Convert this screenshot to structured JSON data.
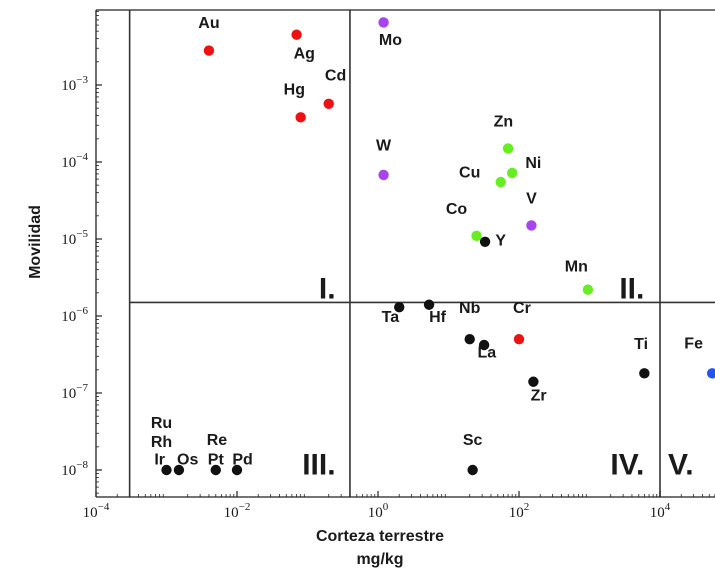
{
  "chart_data": {
    "type": "scatter",
    "xlabel_line1": "Corteza terrestre",
    "xlabel_line2": "mg/kg",
    "ylabel": "Movilidad",
    "x_scale": "log",
    "y_scale": "log",
    "xlim": [
      0.0001,
      100000
    ],
    "ylim": [
      5e-09,
      0.01
    ],
    "grid": false,
    "colors": {
      "red": "#ee1111",
      "violet": "#a844ee",
      "green": "#66ee22",
      "black": "#111111",
      "blue": "#2255ee"
    },
    "x_ticks": [
      {
        "value": 0.0001,
        "mantissa": "10",
        "exp": "−4"
      },
      {
        "value": 0.01,
        "mantissa": "10",
        "exp": "−2"
      },
      {
        "value": 1,
        "mantissa": "10",
        "exp": "0"
      },
      {
        "value": 100,
        "mantissa": "10",
        "exp": "2"
      },
      {
        "value": 10000,
        "mantissa": "10",
        "exp": "4"
      }
    ],
    "y_ticks": [
      {
        "value": 1e-08,
        "mantissa": "10",
        "exp": "−8"
      },
      {
        "value": 1e-07,
        "mantissa": "10",
        "exp": "−7"
      },
      {
        "value": 1e-06,
        "mantissa": "10",
        "exp": "−6"
      },
      {
        "value": 1e-05,
        "mantissa": "10",
        "exp": "−5"
      },
      {
        "value": 0.0001,
        "mantissa": "10",
        "exp": "−4"
      },
      {
        "value": 0.001,
        "mantissa": "10",
        "exp": "−3"
      }
    ],
    "dividers": {
      "vertical_x": [
        0.0003,
        0.4,
        10000
      ],
      "horizontal_y": 1.5e-06
    },
    "regions": [
      {
        "label": "I.",
        "x": 0.25,
        "y": 1.7e-06
      },
      {
        "label": "II.",
        "x": 6000,
        "y": 1.7e-06
      },
      {
        "label": "III.",
        "x": 0.25,
        "y": 8.8e-09
      },
      {
        "label": "IV.",
        "x": 6000,
        "y": 8.8e-09
      },
      {
        "label": "V.",
        "x": 30000,
        "y": 8.8e-09
      }
    ],
    "points": [
      {
        "label": "Au",
        "x": 0.004,
        "y": 0.0028,
        "color": "red",
        "lx": 0.004,
        "ly": 0.0055
      },
      {
        "label": "Ag",
        "x": 0.07,
        "y": 0.0045,
        "color": "red",
        "lx": 0.09,
        "ly": 0.0022
      },
      {
        "label": "Hg",
        "x": 0.08,
        "y": 0.00038,
        "color": "red",
        "lx": 0.065,
        "ly": 0.00075
      },
      {
        "label": "Cd",
        "x": 0.2,
        "y": 0.00057,
        "color": "red",
        "lx": 0.25,
        "ly": 0.00115
      },
      {
        "label": "Mo",
        "x": 1.2,
        "y": 0.0065,
        "color": "violet",
        "lx": 1.5,
        "ly": 0.0033
      },
      {
        "label": "W",
        "x": 1.2,
        "y": 6.8e-05,
        "color": "violet",
        "lx": 1.2,
        "ly": 0.00014
      },
      {
        "label": "V",
        "x": 150,
        "y": 1.5e-05,
        "color": "violet",
        "lx": 150,
        "ly": 2.9e-05
      },
      {
        "label": "Zn",
        "x": 70,
        "y": 0.00015,
        "color": "green",
        "lx": 60,
        "ly": 0.00029
      },
      {
        "label": "Ni",
        "x": 80,
        "y": 7.2e-05,
        "color": "green",
        "lx": 160,
        "ly": 8.3e-05
      },
      {
        "label": "Cu",
        "x": 55,
        "y": 5.5e-05,
        "color": "green",
        "lx": 20,
        "ly": 6.3e-05
      },
      {
        "label": "Co",
        "x": 25,
        "y": 1.1e-05,
        "color": "green",
        "lx": 13,
        "ly": 2.1e-05
      },
      {
        "label": "Y",
        "x": 33,
        "y": 9.2e-06,
        "color": "black",
        "lx": 55,
        "ly": 8.2e-06
      },
      {
        "label": "Mn",
        "x": 950,
        "y": 2.2e-06,
        "color": "green",
        "lx": 650,
        "ly": 3.8e-06
      },
      {
        "label": "Ta",
        "x": 2,
        "y": 1.3e-06,
        "color": "black",
        "lx": 1.5,
        "ly": 8.3e-07
      },
      {
        "label": "Hf",
        "x": 5.3,
        "y": 1.4e-06,
        "color": "black",
        "lx": 7,
        "ly": 8.3e-07
      },
      {
        "label": "Nb",
        "x": 20,
        "y": 5e-07,
        "color": "black",
        "lx": 20,
        "ly": 1.1e-06
      },
      {
        "label": "La",
        "x": 32,
        "y": 4.2e-07,
        "color": "black",
        "lx": 35,
        "ly": 2.9e-07
      },
      {
        "label": "Cr",
        "x": 100,
        "y": 5e-07,
        "color": "red",
        "lx": 110,
        "ly": 1.1e-06
      },
      {
        "label": "Zr",
        "x": 160,
        "y": 1.4e-07,
        "color": "black",
        "lx": 190,
        "ly": 8e-08
      },
      {
        "label": "Ti",
        "x": 6000,
        "y": 1.8e-07,
        "color": "black",
        "lx": 5400,
        "ly": 3.7e-07
      },
      {
        "label": "Fe",
        "x": 55000,
        "y": 1.8e-07,
        "color": "blue",
        "lx": 30000,
        "ly": 3.8e-07
      },
      {
        "label": "Sc",
        "x": 22,
        "y": 1e-08,
        "color": "black",
        "lx": 22,
        "ly": 2.1e-08
      },
      {
        "label": "Ir",
        "x": 0.001,
        "y": 1e-08,
        "color": "black",
        "lx": 0.0008,
        "ly": 1.18e-08
      },
      {
        "label": "Os",
        "x": 0.0015,
        "y": 1e-08,
        "color": "black",
        "lx": 0.002,
        "ly": 1.18e-08
      },
      {
        "label": "Pt",
        "x": 0.005,
        "y": 1e-08,
        "color": "black",
        "lx": 0.005,
        "ly": 1.18e-08
      },
      {
        "label": "Pd",
        "x": 0.01,
        "y": 1e-08,
        "color": "black",
        "lx": 0.012,
        "ly": 1.18e-08
      },
      {
        "label": "Rh",
        "x": null,
        "y": null,
        "color": "black",
        "lx": 0.00085,
        "ly": 2e-08
      },
      {
        "label": "Ru",
        "x": null,
        "y": null,
        "color": "black",
        "lx": 0.00085,
        "ly": 3.5e-08
      },
      {
        "label": "Re",
        "x": null,
        "y": null,
        "color": "black",
        "lx": 0.0052,
        "ly": 2.1e-08
      }
    ]
  }
}
